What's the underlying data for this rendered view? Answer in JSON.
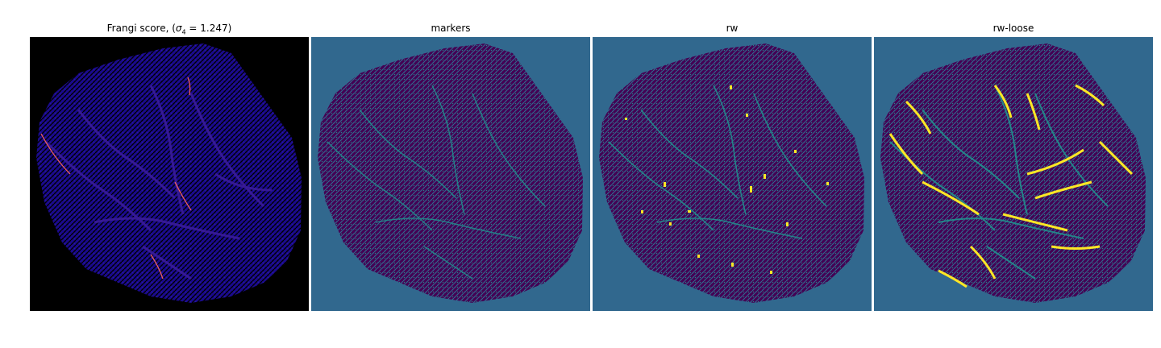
{
  "panels": [
    {
      "title_prefix": "Frangi score, (",
      "title_symbol": "σ",
      "title_subscript": "4",
      "title_suffix": " = 1.247)",
      "background_color": "#000000",
      "region_color": "#1a0a8c",
      "vessel_color": "#3b0f70",
      "highlight_color": "#f0605d",
      "colormap": "magma/plasma"
    },
    {
      "title": "markers",
      "background_color": "#31688e",
      "region_color": "#440154",
      "vessel_color": "#21908d",
      "colormap": "viridis"
    },
    {
      "title": "rw",
      "background_color": "#31688e",
      "region_color": "#440154",
      "vessel_color": "#21908d",
      "highlight_color": "#fde725",
      "colormap": "viridis"
    },
    {
      "title": "rw-loose",
      "background_color": "#31688e",
      "region_color": "#440154",
      "vessel_color": "#21908d",
      "highlight_color": "#fde725",
      "colormap": "viridis"
    }
  ]
}
